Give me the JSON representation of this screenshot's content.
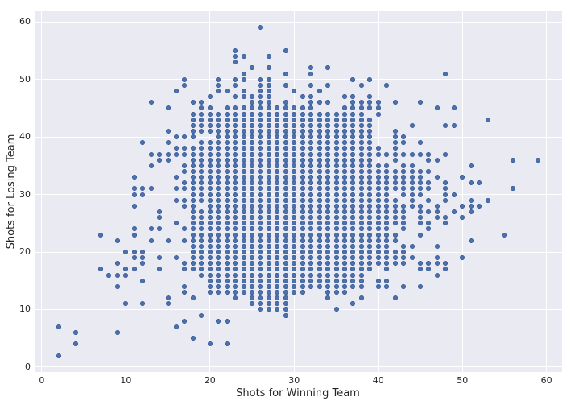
{
  "figure": {
    "background_color": "#ffffff",
    "axes_background_color": "#eaeaf2",
    "grid_color": "#ffffff",
    "dot_color": "#4c72b0",
    "dot_edge_color": "#3f5f99",
    "text_color": "#262626"
  },
  "chart_data": {
    "type": "scatter",
    "title": "",
    "xlabel": "Shots for Winning Team",
    "ylabel": "Shots for Losing Team",
    "xlim": [
      -0.85,
      61.85
    ],
    "ylim": [
      -0.85,
      61.85
    ],
    "xticks": [
      0,
      10,
      20,
      30,
      40,
      50,
      60
    ],
    "yticks": [
      0,
      10,
      20,
      30,
      40,
      50,
      60
    ],
    "grid": "on",
    "legend": "none",
    "marker": "circle",
    "points_by_x": {
      "2": [
        2,
        7
      ],
      "4": [
        4,
        6
      ],
      "7": [
        17,
        23
      ],
      "8": [
        16
      ],
      "9": [
        6,
        14,
        16,
        18,
        22
      ],
      "10": [
        11,
        16,
        17,
        20
      ],
      "11": [
        17,
        19,
        20,
        23,
        24,
        28,
        30,
        31,
        33
      ],
      "12": [
        11,
        15,
        18,
        19,
        20,
        30,
        31,
        39
      ],
      "13": [
        22,
        24,
        31,
        35,
        37,
        46
      ],
      "14": [
        17,
        19,
        24,
        26,
        27,
        36,
        37
      ],
      "15": [
        11,
        12,
        22,
        36,
        37,
        39,
        41,
        45
      ],
      "16": [
        7,
        19,
        25,
        29,
        31,
        33,
        37,
        38,
        40,
        48
      ],
      "17": [
        8,
        13,
        14,
        17,
        18,
        22,
        24,
        28,
        29,
        31,
        32,
        34,
        35,
        37,
        38,
        40,
        49,
        50
      ],
      "18": [
        5,
        12,
        17,
        18,
        19,
        20,
        21,
        22,
        23,
        24,
        25,
        26,
        27,
        28,
        29,
        30,
        31,
        32,
        33,
        34,
        35,
        36,
        37,
        38,
        40,
        41,
        42,
        43,
        44,
        46
      ],
      "19": [
        9,
        16,
        17,
        18,
        19,
        20,
        21,
        22,
        23,
        24,
        25,
        26,
        27,
        29,
        30,
        31,
        32,
        33,
        34,
        35,
        36,
        37,
        38,
        39,
        41,
        42,
        43,
        44,
        45,
        46
      ],
      "20": [
        4,
        13,
        14,
        15,
        16,
        17,
        18,
        19,
        20,
        21,
        22,
        23,
        24,
        25,
        26,
        27,
        28,
        29,
        30,
        31,
        32,
        33,
        34,
        35,
        36,
        37,
        38,
        39,
        41,
        42,
        43,
        44,
        45,
        47
      ],
      "21": [
        8,
        13,
        14,
        15,
        16,
        17,
        18,
        19,
        20,
        21,
        22,
        23,
        24,
        25,
        26,
        27,
        28,
        29,
        30,
        31,
        32,
        33,
        34,
        35,
        36,
        37,
        38,
        39,
        40,
        41,
        42,
        43,
        44,
        48,
        49,
        50
      ],
      "22": [
        4,
        8,
        13,
        14,
        15,
        16,
        17,
        18,
        19,
        20,
        21,
        22,
        23,
        24,
        25,
        26,
        27,
        28,
        29,
        30,
        31,
        32,
        33,
        34,
        35,
        36,
        37,
        38,
        39,
        40,
        41,
        42,
        43,
        44,
        45,
        48
      ],
      "23": [
        12,
        13,
        14,
        15,
        16,
        17,
        18,
        19,
        20,
        21,
        22,
        23,
        24,
        25,
        26,
        27,
        28,
        29,
        30,
        31,
        32,
        33,
        34,
        35,
        36,
        37,
        38,
        39,
        40,
        41,
        42,
        43,
        44,
        45,
        47,
        49,
        50,
        53,
        54,
        55
      ],
      "24": [
        13,
        14,
        15,
        16,
        17,
        18,
        19,
        20,
        21,
        22,
        23,
        24,
        25,
        26,
        27,
        28,
        29,
        30,
        31,
        32,
        33,
        34,
        35,
        36,
        37,
        38,
        39,
        40,
        41,
        42,
        43,
        44,
        45,
        47,
        48,
        50,
        51,
        54
      ],
      "25": [
        11,
        12,
        13,
        14,
        15,
        16,
        17,
        18,
        19,
        20,
        21,
        22,
        23,
        24,
        25,
        26,
        27,
        28,
        29,
        30,
        31,
        32,
        33,
        34,
        35,
        36,
        37,
        38,
        39,
        40,
        41,
        42,
        43,
        44,
        45,
        46,
        47,
        52
      ],
      "26": [
        10,
        11,
        12,
        13,
        14,
        15,
        16,
        17,
        18,
        19,
        20,
        21,
        22,
        23,
        24,
        25,
        26,
        27,
        28,
        29,
        30,
        31,
        32,
        33,
        34,
        35,
        36,
        37,
        38,
        39,
        40,
        41,
        42,
        43,
        44,
        45,
        46,
        47,
        48,
        49,
        50,
        59
      ],
      "27": [
        10,
        11,
        12,
        13,
        14,
        15,
        16,
        17,
        18,
        19,
        20,
        21,
        22,
        23,
        24,
        25,
        26,
        27,
        28,
        29,
        30,
        31,
        32,
        33,
        34,
        35,
        36,
        37,
        38,
        39,
        40,
        41,
        42,
        43,
        44,
        45,
        46,
        47,
        48,
        49,
        50,
        52,
        54
      ],
      "28": [
        10,
        11,
        12,
        13,
        14,
        15,
        16,
        17,
        18,
        19,
        20,
        21,
        22,
        23,
        24,
        25,
        26,
        27,
        28,
        29,
        30,
        31,
        32,
        33,
        34,
        35,
        36,
        37,
        38,
        39,
        40,
        41,
        42,
        43,
        44,
        45
      ],
      "29": [
        9,
        10,
        11,
        12,
        13,
        14,
        15,
        16,
        17,
        18,
        19,
        20,
        21,
        22,
        23,
        24,
        25,
        26,
        27,
        28,
        29,
        30,
        31,
        32,
        33,
        34,
        35,
        36,
        37,
        38,
        39,
        40,
        41,
        42,
        43,
        44,
        45,
        46,
        49,
        51,
        55
      ],
      "30": [
        13,
        14,
        15,
        16,
        17,
        18,
        19,
        20,
        21,
        22,
        23,
        24,
        25,
        26,
        27,
        28,
        29,
        30,
        31,
        32,
        33,
        34,
        35,
        36,
        37,
        38,
        39,
        40,
        41,
        42,
        43,
        44,
        45,
        48
      ],
      "31": [
        13,
        14,
        15,
        16,
        17,
        18,
        19,
        20,
        21,
        22,
        23,
        24,
        25,
        26,
        27,
        28,
        29,
        30,
        31,
        32,
        33,
        34,
        35,
        36,
        37,
        38,
        39,
        40,
        41,
        42,
        43,
        44,
        45,
        47
      ],
      "32": [
        14,
        15,
        16,
        17,
        18,
        19,
        20,
        21,
        22,
        23,
        24,
        25,
        26,
        27,
        28,
        29,
        30,
        31,
        32,
        33,
        34,
        35,
        36,
        37,
        38,
        39,
        40,
        41,
        42,
        43,
        44,
        45,
        46,
        47,
        49,
        51,
        52
      ],
      "33": [
        14,
        15,
        16,
        17,
        18,
        19,
        20,
        21,
        22,
        23,
        24,
        25,
        26,
        27,
        28,
        29,
        30,
        31,
        32,
        33,
        34,
        35,
        36,
        37,
        38,
        39,
        40,
        41,
        42,
        43,
        44,
        46,
        48
      ],
      "34": [
        12,
        13,
        14,
        15,
        16,
        17,
        18,
        19,
        20,
        21,
        22,
        23,
        24,
        25,
        26,
        27,
        28,
        29,
        30,
        31,
        32,
        33,
        34,
        35,
        36,
        37,
        38,
        39,
        40,
        41,
        42,
        43,
        44,
        46,
        49,
        52
      ],
      "35": [
        10,
        13,
        14,
        15,
        16,
        17,
        18,
        19,
        20,
        21,
        22,
        23,
        24,
        25,
        26,
        27,
        28,
        29,
        30,
        31,
        32,
        33,
        34,
        35,
        36,
        37,
        38,
        39,
        40,
        41,
        42,
        43,
        44
      ],
      "36": [
        13,
        14,
        15,
        16,
        17,
        18,
        19,
        20,
        21,
        22,
        23,
        24,
        25,
        26,
        27,
        28,
        29,
        30,
        31,
        32,
        33,
        34,
        35,
        36,
        37,
        38,
        39,
        40,
        41,
        42,
        43,
        44,
        45,
        47
      ],
      "37": [
        11,
        14,
        15,
        16,
        17,
        18,
        19,
        20,
        21,
        22,
        23,
        24,
        25,
        26,
        27,
        28,
        29,
        30,
        31,
        32,
        33,
        34,
        35,
        36,
        37,
        38,
        39,
        40,
        41,
        42,
        43,
        44,
        45,
        46,
        47,
        50
      ],
      "38": [
        12,
        14,
        15,
        16,
        17,
        18,
        19,
        20,
        21,
        22,
        23,
        24,
        25,
        26,
        27,
        28,
        29,
        30,
        31,
        32,
        33,
        34,
        35,
        36,
        37,
        38,
        39,
        40,
        41,
        42,
        43,
        44,
        45,
        46,
        49
      ],
      "39": [
        17,
        18,
        19,
        20,
        21,
        22,
        23,
        24,
        25,
        26,
        27,
        28,
        29,
        30,
        31,
        32,
        33,
        34,
        35,
        36,
        37,
        38,
        39,
        40,
        41,
        42,
        43,
        45,
        46,
        47,
        50
      ],
      "40": [
        14,
        15,
        18,
        19,
        20,
        21,
        22,
        23,
        24,
        25,
        26,
        27,
        28,
        29,
        30,
        31,
        32,
        33,
        34,
        35,
        37,
        38,
        44,
        45,
        46
      ],
      "41": [
        14,
        15,
        17,
        18,
        19,
        20,
        21,
        22,
        23,
        24,
        25,
        26,
        27,
        28,
        29,
        30,
        31,
        32,
        33,
        34,
        35,
        37,
        49
      ],
      "42": [
        12,
        18,
        19,
        20,
        22,
        23,
        25,
        26,
        27,
        28,
        29,
        31,
        32,
        33,
        34,
        36,
        37,
        38,
        39,
        40,
        41,
        46
      ],
      "43": [
        14,
        18,
        19,
        20,
        21,
        24,
        25,
        26,
        27,
        28,
        30,
        31,
        32,
        33,
        34,
        35,
        37,
        39,
        40
      ],
      "44": [
        19,
        21,
        28,
        29,
        30,
        31,
        32,
        33,
        34,
        35,
        37,
        42
      ],
      "45": [
        14,
        17,
        18,
        23,
        25,
        26,
        27,
        28,
        30,
        31,
        32,
        33,
        34,
        37,
        39,
        46
      ],
      "46": [
        17,
        18,
        24,
        25,
        27,
        29,
        31,
        32,
        34,
        36,
        37
      ],
      "47": [
        16,
        18,
        19,
        21,
        26,
        27,
        28,
        33,
        36,
        45
      ],
      "48": [
        17,
        18,
        25,
        26,
        29,
        30,
        31,
        32,
        37,
        42,
        51
      ],
      "49": [
        27,
        30,
        42,
        45
      ],
      "50": [
        19,
        26,
        28,
        33
      ],
      "51": [
        22,
        27,
        28,
        29,
        32,
        35
      ],
      "52": [
        28,
        32
      ],
      "53": [
        29,
        43
      ],
      "55": [
        23
      ],
      "56": [
        31,
        36
      ],
      "59": [
        36
      ]
    }
  }
}
